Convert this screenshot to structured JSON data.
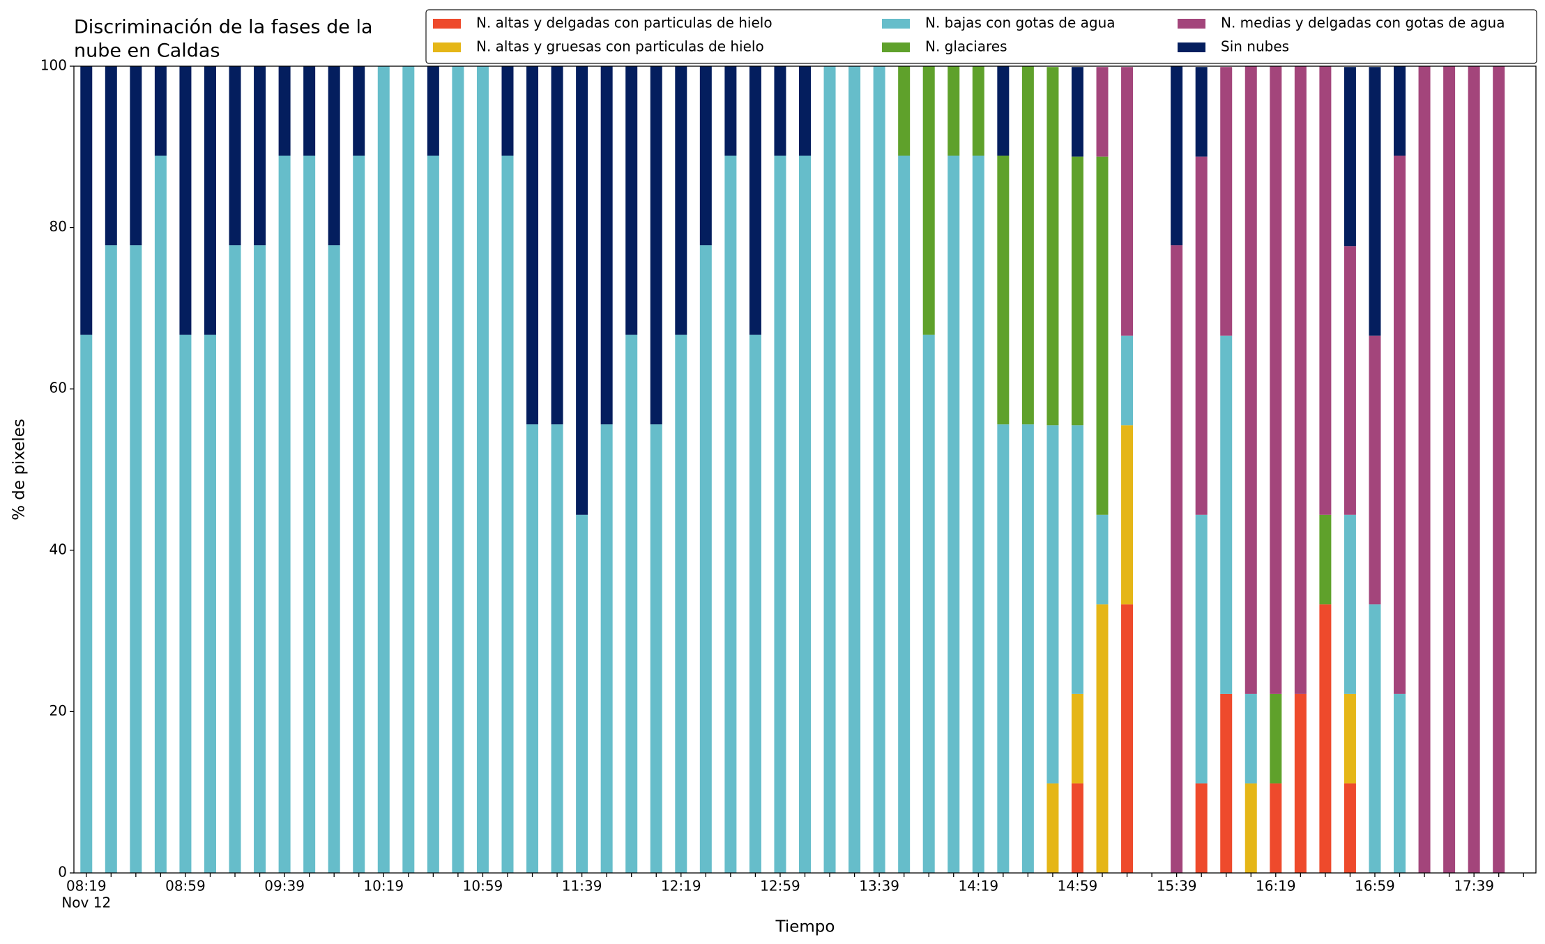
{
  "chart_data": {
    "type": "stacked_bar",
    "title_lines": [
      "Discriminación de la fases de la",
      "nube en Caldas"
    ],
    "x_label": "Tiempo",
    "y_label": "% de pixeles",
    "date_label": "Nov 12",
    "categories": [
      "08:19",
      null,
      null,
      null,
      "08:59",
      null,
      null,
      null,
      "09:39",
      null,
      null,
      null,
      "10:19",
      null,
      null,
      null,
      "10:59",
      null,
      null,
      null,
      "11:39",
      null,
      null,
      null,
      "12:19",
      null,
      null,
      null,
      "12:59",
      null,
      null,
      null,
      "13:39",
      null,
      null,
      null,
      "14:19",
      null,
      null,
      null,
      "14:59",
      null,
      null,
      null,
      "15:39",
      null,
      null,
      null,
      "16:19",
      null,
      null,
      null,
      "16:59",
      null,
      null,
      null,
      "17:39",
      null,
      null
    ],
    "ylim": [
      0,
      100
    ],
    "yticks": [
      0,
      20,
      40,
      60,
      80,
      100
    ],
    "grid": false,
    "legend": "top",
    "series": [
      {
        "name": "N. altas y delgadas con particulas de hielo",
        "color": "#ee4a2c",
        "values": [
          0,
          0,
          0,
          0,
          0,
          0,
          0,
          0,
          0,
          0,
          0,
          0,
          0,
          0,
          0,
          0,
          0,
          0,
          0,
          0,
          0,
          0,
          0,
          0,
          0,
          0,
          0,
          0,
          0,
          0,
          0,
          0,
          0,
          0,
          0,
          0,
          0,
          0,
          0,
          0,
          11.1,
          0,
          33.3,
          null,
          0,
          11.1,
          22.2,
          0,
          11.1,
          22.2,
          33.3,
          11.1,
          0,
          0,
          0,
          0,
          0,
          0,
          null
        ]
      },
      {
        "name": "N. altas y gruesas con particulas de hielo",
        "color": "#e5b617",
        "values": [
          0,
          0,
          0,
          0,
          0,
          0,
          0,
          0,
          0,
          0,
          0,
          0,
          0,
          0,
          0,
          0,
          0,
          0,
          0,
          0,
          0,
          0,
          0,
          0,
          0,
          0,
          0,
          0,
          0,
          0,
          0,
          0,
          0,
          0,
          0,
          0,
          0,
          0,
          0,
          11.1,
          11.1,
          33.3,
          22.2,
          null,
          0,
          0,
          0,
          11.1,
          0,
          0,
          0,
          11.1,
          0,
          0,
          0,
          0,
          0,
          0,
          null
        ]
      },
      {
        "name": "N. bajas con gotas de agua",
        "color": "#66bdca",
        "values": [
          66.7,
          77.8,
          77.8,
          88.9,
          66.7,
          66.7,
          77.8,
          77.8,
          88.9,
          88.9,
          77.8,
          88.9,
          100,
          100,
          88.9,
          100,
          100,
          88.9,
          55.6,
          55.6,
          44.4,
          55.6,
          66.7,
          55.6,
          66.7,
          77.8,
          88.9,
          66.7,
          88.9,
          88.9,
          100,
          100,
          100,
          88.9,
          66.7,
          88.9,
          88.9,
          55.6,
          55.6,
          44.4,
          33.3,
          11.1,
          11.1,
          null,
          0,
          33.3,
          44.4,
          11.1,
          0,
          0,
          0,
          22.2,
          33.3,
          22.2,
          0,
          0,
          0,
          0,
          null
        ]
      },
      {
        "name": "N. glaciares",
        "color": "#5fa12b",
        "values": [
          0,
          0,
          0,
          0,
          0,
          0,
          0,
          0,
          0,
          0,
          0,
          0,
          0,
          0,
          0,
          0,
          0,
          0,
          0,
          0,
          0,
          0,
          0,
          0,
          0,
          0,
          0,
          0,
          0,
          0,
          0,
          0,
          0,
          11.1,
          33.3,
          11.1,
          11.1,
          33.3,
          44.4,
          44.4,
          33.3,
          44.4,
          0,
          null,
          0,
          0,
          0,
          0,
          11.1,
          0,
          11.1,
          0,
          0,
          0,
          0,
          0,
          0,
          0,
          null
        ]
      },
      {
        "name": "N. medias y delgadas con gotas de agua",
        "color": "#a3457b",
        "values": [
          0,
          0,
          0,
          0,
          0,
          0,
          0,
          0,
          0,
          0,
          0,
          0,
          0,
          0,
          0,
          0,
          0,
          0,
          0,
          0,
          0,
          0,
          0,
          0,
          0,
          0,
          0,
          0,
          0,
          0,
          0,
          0,
          0,
          0,
          0,
          0,
          0,
          0,
          0,
          0,
          0,
          11.1,
          33.3,
          null,
          77.8,
          44.4,
          33.3,
          77.8,
          77.8,
          77.8,
          55.6,
          33.3,
          33.3,
          66.7,
          100,
          100,
          100,
          100,
          null
        ]
      },
      {
        "name": "Sin nubes",
        "color": "#041e5e",
        "values": [
          33.3,
          22.2,
          22.2,
          11.1,
          33.3,
          33.3,
          22.2,
          22.2,
          11.1,
          11.1,
          22.2,
          11.1,
          0,
          0,
          11.1,
          0,
          0,
          11.1,
          44.4,
          44.4,
          55.6,
          44.4,
          33.3,
          44.4,
          33.3,
          22.2,
          11.1,
          33.3,
          11.1,
          11.1,
          0,
          0,
          0,
          0,
          0,
          0,
          0,
          11.1,
          0,
          0,
          11.1,
          0,
          0,
          null,
          22.2,
          11.1,
          0,
          0,
          0,
          0,
          0,
          22.2,
          33.3,
          11.1,
          0,
          0,
          0,
          0,
          null
        ]
      }
    ]
  }
}
